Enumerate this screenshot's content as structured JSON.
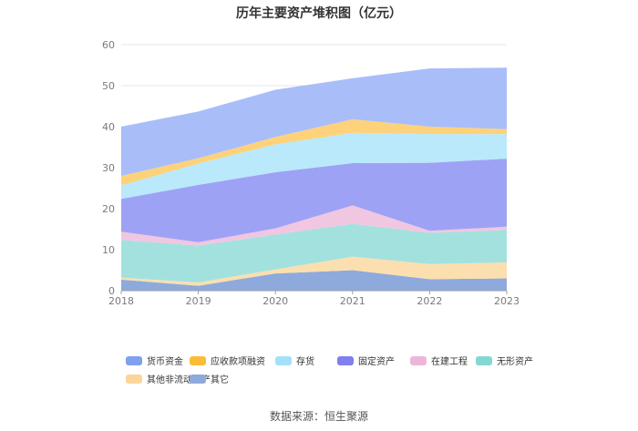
{
  "chart_data": {
    "type": "area",
    "stacked": true,
    "title": "历年主要资产堆积图（亿元）",
    "xlabel": "",
    "ylabel": "",
    "ylim": [
      0,
      60
    ],
    "yticks": [
      0,
      10,
      20,
      30,
      40,
      50,
      60
    ],
    "categories": [
      "2018",
      "2019",
      "2020",
      "2021",
      "2022",
      "2023"
    ],
    "series": [
      {
        "name": "其它",
        "color": "#8eaadc",
        "values": [
          2.7,
          1.2,
          4.2,
          5.0,
          2.8,
          3.0
        ]
      },
      {
        "name": "其他非流动资产",
        "color": "#fbdfae",
        "values": [
          0.5,
          0.8,
          1.0,
          3.3,
          3.7,
          3.9
        ]
      },
      {
        "name": "无形资产",
        "color": "#a3e1df",
        "values": [
          9.2,
          9.0,
          8.5,
          8.0,
          7.6,
          7.9
        ]
      },
      {
        "name": "在建工程",
        "color": "#f1c6e0",
        "values": [
          2.0,
          0.8,
          1.5,
          4.5,
          0.5,
          0.8
        ]
      },
      {
        "name": "固定资产",
        "color": "#9ea2f5",
        "values": [
          8.0,
          14.0,
          13.7,
          10.3,
          16.6,
          16.6
        ]
      },
      {
        "name": "存货",
        "color": "#b9e9fb",
        "values": [
          3.3,
          5.2,
          6.8,
          7.4,
          7.0,
          6.0
        ]
      },
      {
        "name": "应收款项融资",
        "color": "#fdd27b",
        "values": [
          2.3,
          1.3,
          1.8,
          3.3,
          1.8,
          1.2
        ]
      },
      {
        "name": "货币资金",
        "color": "#a9bdf9",
        "values": [
          12.0,
          11.4,
          11.5,
          10.0,
          14.2,
          15.0
        ]
      }
    ]
  },
  "legend": {
    "items": [
      {
        "label": "货币资金",
        "color": "#7fa0ee"
      },
      {
        "label": "应收款项融资",
        "color": "#fcbd35"
      },
      {
        "label": "存货",
        "color": "#a5e0fb"
      },
      {
        "label": "固定资产",
        "color": "#7f7ff0"
      },
      {
        "label": "在建工程",
        "color": "#efb5d9"
      },
      {
        "label": "无形资产",
        "color": "#84d7d4"
      },
      {
        "label": "其他非流动资产",
        "color": "#fcd59b"
      },
      {
        "label": "其它",
        "color": "#8eaadc"
      }
    ]
  },
  "source": "数据来源：恒生聚源"
}
